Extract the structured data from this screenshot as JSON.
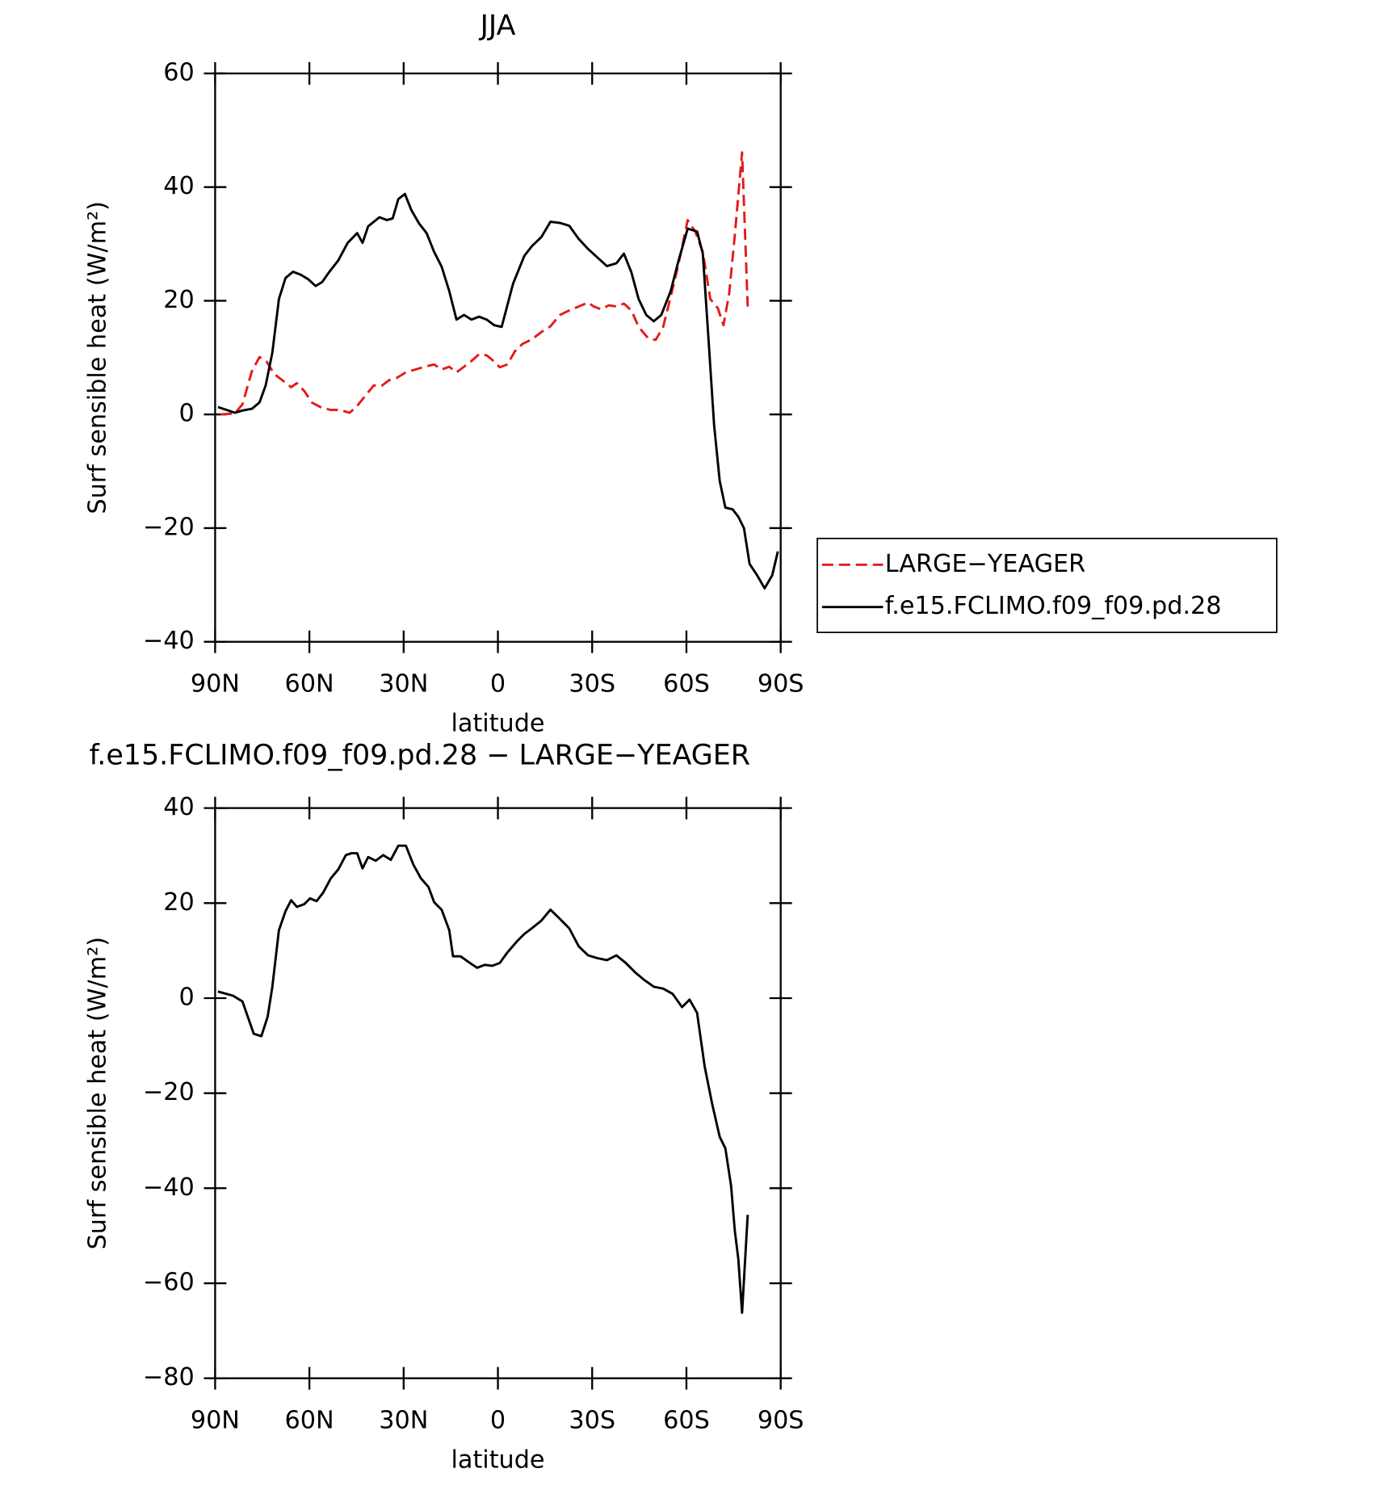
{
  "chart_data": [
    {
      "type": "line",
      "title": "JJA",
      "xlabel": "latitude",
      "ylabel": "Surf sensible heat (W/m²)",
      "xlim": [
        90,
        -90
      ],
      "ylim": [
        -40,
        60
      ],
      "xticks": [
        {
          "value": 90,
          "label": "90N"
        },
        {
          "value": 60,
          "label": "60N"
        },
        {
          "value": 30,
          "label": "30N"
        },
        0,
        {
          "value": -30,
          "label": "30S"
        },
        {
          "value": -60,
          "label": "60S"
        },
        {
          "value": -90,
          "label": "90S"
        }
      ],
      "yticks": [
        60,
        40,
        20,
        0,
        {
          "value": -20,
          "label": "−20"
        },
        {
          "value": -40,
          "label": "−40"
        }
      ],
      "legend": "right",
      "series": [
        {
          "name": "LARGE−YEAGER",
          "color": "#e41a1c",
          "linestyle": "dashed",
          "x": [
            88.3,
            83.7,
            81.3,
            78.3,
            75.9,
            73.6,
            71.2,
            68.8,
            65.8,
            64,
            61.6,
            59.2,
            56.2,
            53.2,
            50.2,
            47.2,
            44.8,
            41.9,
            39.5,
            37.1,
            34.7,
            32.3,
            29.3,
            26.3,
            23.3,
            20.3,
            17.9,
            15.5,
            13.2,
            10.8,
            8.4,
            6,
            3.6,
            1.8,
            -0.6,
            -3,
            -5.4,
            -7.8,
            -10.8,
            -13.8,
            -16.7,
            -19.7,
            -22.7,
            -25.7,
            -28.7,
            -30.5,
            -32.9,
            -35.3,
            -37.7,
            -40.1,
            -42.5,
            -44.8,
            -47.8,
            -50.2,
            -52.6,
            -55,
            -57.4,
            -60.4,
            -62.8,
            -65.2,
            -67.6,
            -70,
            -71.8,
            -73.6,
            -75.4,
            -77.7,
            -79.5
          ],
          "values": [
            0,
            0.2,
            1.8,
            7.6,
            10.1,
            9.3,
            7.1,
            6.1,
            4.8,
            5.5,
            4.1,
            2.1,
            1.2,
            0.8,
            0.8,
            0.3,
            1.5,
            3.5,
            5.1,
            5,
            6,
            6.4,
            7.4,
            7.9,
            8.4,
            8.8,
            7.9,
            8.4,
            7.4,
            8.4,
            9.4,
            10.6,
            10.4,
            9.6,
            8.3,
            8.8,
            11.1,
            12.4,
            13.2,
            14.5,
            15.5,
            17.5,
            18.3,
            19,
            19.7,
            19,
            18.5,
            19.2,
            19,
            19.5,
            18.3,
            15.4,
            13.4,
            13.1,
            15.4,
            20.7,
            26.3,
            34.2,
            32.2,
            28.6,
            20.3,
            18.7,
            15.7,
            21.3,
            31.6,
            46.1,
            19
          ]
        },
        {
          "name": "f.e15.FCLIMO.f09_f09.pd.28",
          "color": "#000000",
          "linestyle": "solid",
          "x": [
            89.1,
            83.7,
            81.3,
            78.3,
            75.9,
            73.9,
            71.8,
            69.7,
            67.6,
            65.2,
            62.8,
            60.4,
            58,
            55.9,
            53.8,
            50.8,
            47.8,
            44.8,
            43.1,
            41.3,
            37.7,
            35.3,
            33.5,
            31.7,
            29.6,
            27.5,
            25.1,
            22.7,
            20.3,
            17.9,
            15.5,
            13.2,
            10.8,
            8.4,
            6,
            3.6,
            1.2,
            -1.2,
            -4.8,
            -8.4,
            -10.8,
            -13.8,
            -16.7,
            -19.7,
            -22.7,
            -25.7,
            -28.7,
            -31.7,
            -34.7,
            -37.7,
            -40.1,
            -42.5,
            -44.8,
            -47.2,
            -49.6,
            -52,
            -55,
            -57.4,
            -60.4,
            -63.4,
            -65.2,
            -67,
            -68.8,
            -70.6,
            -72.4,
            -74.7,
            -76.5,
            -78.3,
            -80.1,
            -82.5,
            -84.9,
            -87.3,
            -89.1
          ],
          "values": [
            1.3,
            0.3,
            0.7,
            1,
            2.1,
            5.1,
            10.9,
            20.3,
            24,
            25.1,
            24.6,
            23.8,
            22.6,
            23.3,
            25,
            27.1,
            30.2,
            31.9,
            30.2,
            33.1,
            34.7,
            34.2,
            34.5,
            37.9,
            38.8,
            35.9,
            33.6,
            31.9,
            28.6,
            26,
            21.7,
            16.7,
            17.5,
            16.7,
            17.2,
            16.7,
            15.7,
            15.4,
            23,
            27.9,
            29.6,
            31.2,
            33.9,
            33.7,
            33.2,
            30.9,
            29.1,
            27.6,
            26.1,
            26.6,
            28.3,
            25,
            20.3,
            17.5,
            16.4,
            17.5,
            21.7,
            26.9,
            32.7,
            32.2,
            28.3,
            13.4,
            -1.8,
            -11.7,
            -16.4,
            -16.7,
            -18,
            -20,
            -26.3,
            -28.3,
            -30.6,
            -28.3,
            -24.1
          ]
        }
      ]
    },
    {
      "type": "line",
      "title": "f.e15.FCLIMO.f09_f09.pd.28 − LARGE−YEAGER",
      "xlabel": "latitude",
      "ylabel": "Surf sensible heat (W/m²)",
      "xlim": [
        90,
        -90
      ],
      "ylim": [
        -80,
        40
      ],
      "xticks": [
        {
          "value": 90,
          "label": "90N"
        },
        {
          "value": 60,
          "label": "60N"
        },
        {
          "value": 30,
          "label": "30N"
        },
        0,
        {
          "value": -30,
          "label": "30S"
        },
        {
          "value": -60,
          "label": "60S"
        },
        {
          "value": -90,
          "label": "90S"
        }
      ],
      "yticks": [
        40,
        20,
        0,
        {
          "value": -20,
          "label": "−20"
        },
        {
          "value": -40,
          "label": "−40"
        },
        {
          "value": -60,
          "label": "−60"
        },
        {
          "value": -80,
          "label": "−80"
        }
      ],
      "series": [
        {
          "color": "#000000",
          "linestyle": "solid",
          "x": [
            89.1,
            84.3,
            81.3,
            77.7,
            75.3,
            73.3,
            71.8,
            69.7,
            67.6,
            65.8,
            64,
            61.6,
            59.8,
            57.7,
            55.6,
            53.2,
            50.8,
            48.4,
            46.6,
            44.8,
            43.1,
            41.3,
            38.9,
            36.5,
            34.1,
            31.7,
            29.3,
            26.9,
            24.5,
            22.1,
            20.3,
            17.9,
            15.5,
            14.3,
            11.9,
            8.9,
            6.6,
            4.2,
            1.8,
            -0.6,
            -3,
            -6,
            -8.4,
            -10.8,
            -13.8,
            -16.7,
            -19.7,
            -22.7,
            -25.7,
            -28.7,
            -31.7,
            -34.7,
            -37.7,
            -40.7,
            -43.7,
            -46.6,
            -49.6,
            -52.6,
            -55.6,
            -58.6,
            -61,
            -63.4,
            -65.8,
            -68.2,
            -70.6,
            -72.4,
            -74.2,
            -75.4,
            -76.5,
            -77.7,
            -79.5
          ],
          "values": [
            1.4,
            0.5,
            -0.7,
            -7.5,
            -8,
            -3.9,
            2.4,
            14.3,
            18.3,
            20.6,
            19.2,
            19.8,
            21,
            20.4,
            22.2,
            25.2,
            27.1,
            30.1,
            30.5,
            30.5,
            27.3,
            29.7,
            28.9,
            30.1,
            29.1,
            32.1,
            32.1,
            28.1,
            25.2,
            23.4,
            20.2,
            18.6,
            14.3,
            8.8,
            8.8,
            7.4,
            6.4,
            7,
            6.8,
            7.4,
            9.6,
            11.9,
            13.5,
            14.7,
            16.3,
            18.6,
            16.7,
            14.7,
            10.9,
            9,
            8.4,
            8,
            9,
            7.4,
            5.4,
            3.8,
            2.4,
            2,
            0.9,
            -1.9,
            -0.3,
            -3.1,
            -14.4,
            -22.3,
            -29.2,
            -31.6,
            -39.5,
            -49,
            -54.9,
            -66.2,
            -45.6
          ]
        }
      ]
    }
  ]
}
